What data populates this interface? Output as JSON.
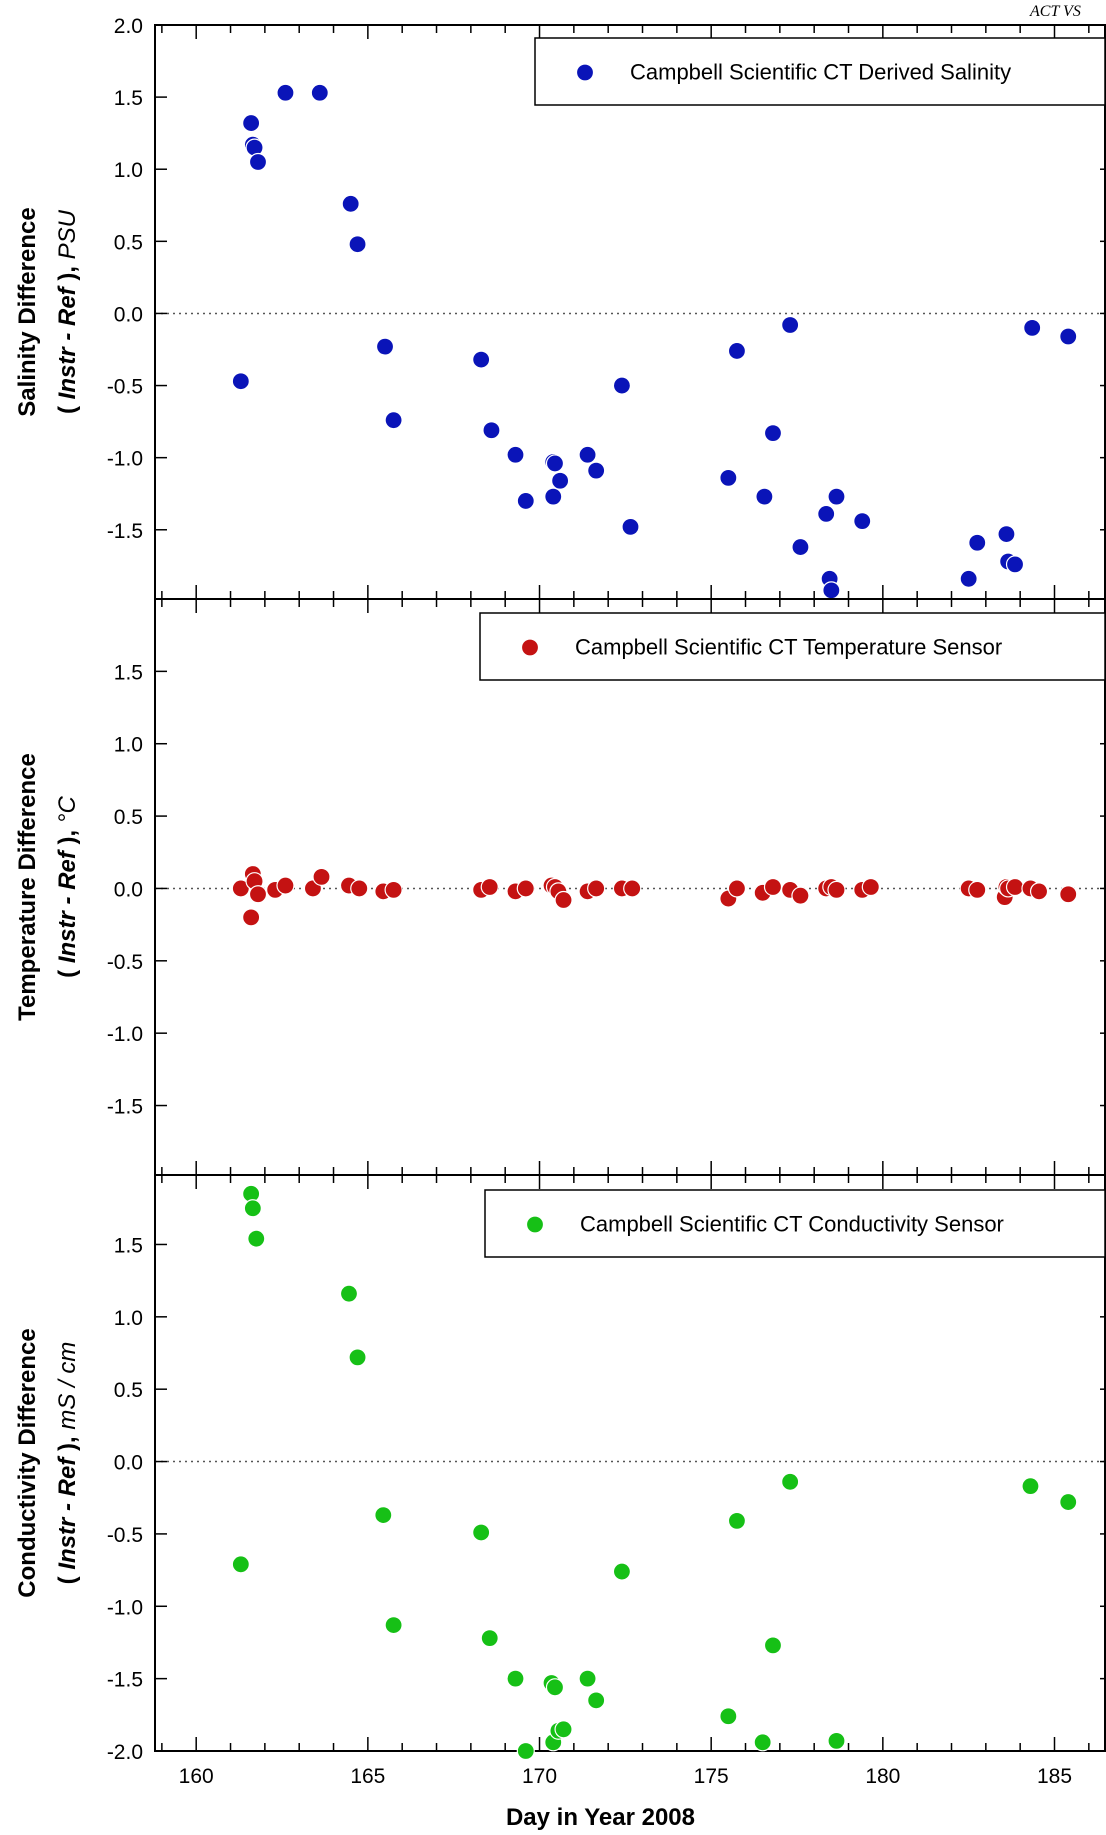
{
  "header": {
    "text": "ACT VS"
  },
  "colors": {
    "salinity_marker": "#0a14b8",
    "temperature_marker": "#c41212",
    "conductivity_marker": "#16c016",
    "zero_line": "#555555"
  },
  "chart_data": [
    {
      "type": "scatter",
      "ylabel_bold_prefix": "Salinity Difference",
      "ylabel_bold_open": "( ",
      "ylabel_italic_mid": "Instr - Ref",
      "ylabel_bold_close": " ), ",
      "ylabel_unit": "PSU",
      "xlim": [
        158.8,
        186.5
      ],
      "ylim": [
        -1.98,
        2.0
      ],
      "yticks": [
        -1.5,
        -1.0,
        -0.5,
        0.0,
        0.5,
        1.0,
        1.5,
        2.0
      ],
      "ytick_labels": [
        "-1.5",
        "-1.0",
        "-0.5",
        "0.0",
        "0.5",
        "1.0",
        "1.5",
        "2.0"
      ],
      "legend": "Campbell Scientific CT Derived Salinity",
      "legend_position": "top-right",
      "zero_line": true,
      "series": [
        {
          "name": "Campbell Scientific CT Derived Salinity",
          "x": [
            161.3,
            161.6,
            161.65,
            161.7,
            161.8,
            162.6,
            163.6,
            164.5,
            164.7,
            165.5,
            165.75,
            168.3,
            168.6,
            169.3,
            169.6,
            170.4,
            170.45,
            170.4,
            170.6,
            171.4,
            171.65,
            172.4,
            172.65,
            175.5,
            175.75,
            176.55,
            176.8,
            177.3,
            177.6,
            178.35,
            178.45,
            178.5,
            178.65,
            179.4,
            182.5,
            182.75,
            183.6,
            183.65,
            183.85,
            184.35,
            185.4
          ],
          "y": [
            -0.47,
            1.32,
            1.17,
            1.15,
            1.05,
            1.53,
            1.53,
            0.76,
            0.48,
            -0.23,
            -0.74,
            -0.32,
            -0.81,
            -0.98,
            -1.3,
            -1.03,
            -1.04,
            -1.27,
            -1.16,
            -0.98,
            -1.09,
            -0.5,
            -1.48,
            -1.14,
            -0.26,
            -1.27,
            -0.83,
            -0.08,
            -1.62,
            -1.39,
            -1.84,
            -1.92,
            -1.27,
            -1.44,
            -1.84,
            -1.59,
            -1.53,
            -1.72,
            -1.74,
            -0.1,
            -0.16
          ]
        }
      ]
    },
    {
      "type": "scatter",
      "ylabel_bold_prefix": "Temperature Difference",
      "ylabel_bold_open": "( ",
      "ylabel_italic_mid": "Instr - Ref",
      "ylabel_bold_close": " ), ",
      "ylabel_unit": "°C",
      "xlim": [
        158.8,
        186.5
      ],
      "ylim": [
        -1.98,
        2.0
      ],
      "yticks": [
        -1.5,
        -1.0,
        -0.5,
        0.0,
        0.5,
        1.0,
        1.5
      ],
      "ytick_labels": [
        "-1.5",
        "-1.0",
        "-0.5",
        "0.0",
        "0.5",
        "1.0",
        "1.5"
      ],
      "legend": "Campbell Scientific CT Temperature Sensor",
      "legend_position": "top-right",
      "zero_line": true,
      "series": [
        {
          "name": "Campbell Scientific CT Temperature Sensor",
          "x": [
            161.3,
            161.6,
            161.65,
            161.7,
            161.8,
            162.3,
            162.6,
            163.4,
            163.65,
            164.45,
            164.75,
            165.45,
            165.75,
            168.3,
            168.55,
            169.3,
            169.6,
            170.35,
            170.45,
            170.55,
            170.7,
            171.4,
            171.65,
            172.4,
            172.7,
            175.5,
            175.75,
            176.5,
            176.8,
            177.3,
            177.6,
            178.35,
            178.5,
            178.65,
            179.4,
            179.65,
            182.5,
            182.75,
            183.55,
            183.6,
            183.65,
            183.85,
            184.3,
            184.55,
            185.4
          ],
          "y": [
            0.0,
            -0.2,
            0.1,
            0.05,
            -0.04,
            -0.01,
            0.02,
            0.0,
            0.08,
            0.02,
            0.0,
            -0.02,
            -0.01,
            -0.01,
            0.01,
            -0.02,
            0.0,
            0.02,
            0.01,
            -0.02,
            -0.08,
            -0.02,
            0.0,
            0.0,
            0.0,
            -0.07,
            0.0,
            -0.03,
            0.01,
            -0.01,
            -0.05,
            0.0,
            0.01,
            -0.01,
            -0.01,
            0.01,
            0.0,
            -0.01,
            -0.06,
            0.01,
            0.0,
            0.01,
            0.0,
            -0.02,
            -0.04
          ]
        }
      ]
    },
    {
      "type": "scatter",
      "xlabel": "Day in Year 2008",
      "ylabel_bold_prefix": "Conductivity Difference",
      "ylabel_bold_open": "( ",
      "ylabel_italic_mid": "Instr - Ref",
      "ylabel_bold_close": " ), ",
      "ylabel_unit": "mS / cm",
      "xlim": [
        158.8,
        186.5
      ],
      "ylim": [
        -2.0,
        1.98
      ],
      "xticks": [
        160,
        165,
        170,
        175,
        180,
        185
      ],
      "xtick_labels": [
        "160",
        "165",
        "170",
        "175",
        "180",
        "185"
      ],
      "yticks": [
        -2.0,
        -1.5,
        -1.0,
        -0.5,
        0.0,
        0.5,
        1.0,
        1.5
      ],
      "ytick_labels": [
        "-2.0",
        "-1.5",
        "-1.0",
        "-0.5",
        "0.0",
        "0.5",
        "1.0",
        "1.5"
      ],
      "legend": "Campbell Scientific CT Conductivity Sensor",
      "legend_position": "top-right",
      "zero_line": true,
      "series": [
        {
          "name": "Campbell Scientific CT Conductivity Sensor",
          "x": [
            161.3,
            161.6,
            161.65,
            161.75,
            164.45,
            164.7,
            165.45,
            165.75,
            168.3,
            168.55,
            169.3,
            169.6,
            170.35,
            170.45,
            170.4,
            170.55,
            170.7,
            171.4,
            171.65,
            172.4,
            175.5,
            175.75,
            176.5,
            176.8,
            177.3,
            178.65,
            184.3,
            185.4
          ],
          "y": [
            -0.71,
            1.85,
            1.75,
            1.54,
            1.16,
            0.72,
            -0.37,
            -1.13,
            -0.49,
            -1.22,
            -1.5,
            -2.0,
            -1.53,
            -1.56,
            -1.94,
            -1.86,
            -1.85,
            -1.5,
            -1.65,
            -0.76,
            -1.76,
            -0.41,
            -1.94,
            -1.27,
            -0.14,
            -1.93,
            -0.17,
            -0.28
          ]
        }
      ]
    }
  ]
}
